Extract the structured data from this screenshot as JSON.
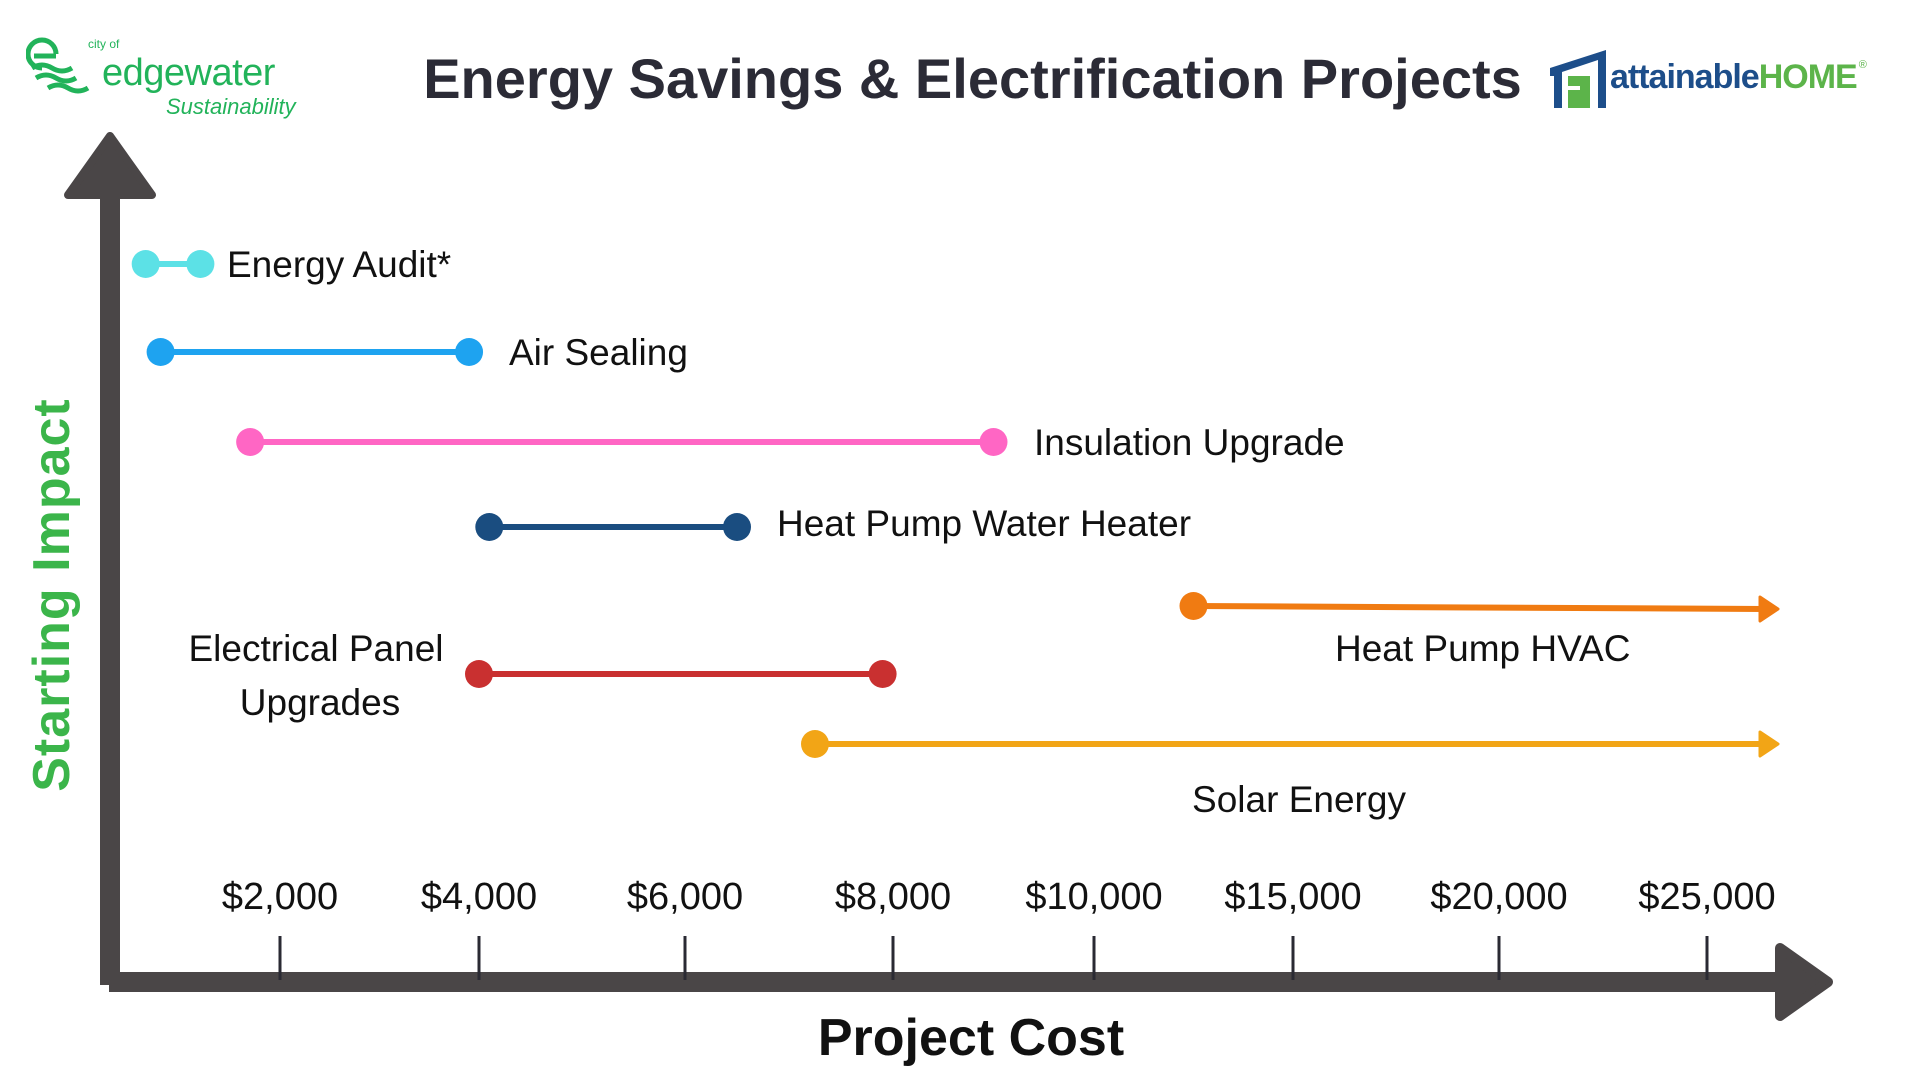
{
  "title": "Energy Savings & Electrification Projects",
  "logos": {
    "left": {
      "city_of": "city of",
      "name": "edgewater",
      "subtitle": "Sustainability",
      "color": "#22b35a"
    },
    "right": {
      "name_part1": "attainable",
      "name_part2": "HOME",
      "registered": "®",
      "colors": [
        "#1d4e8a",
        "#5cb44a"
      ]
    }
  },
  "chart_data": {
    "type": "range",
    "title": "Energy Savings & Electrification Projects",
    "xlabel": "Project Cost",
    "ylabel": "Starting Impact",
    "x_ticks": [
      2000,
      4000,
      6000,
      8000,
      10000,
      15000,
      20000,
      25000
    ],
    "x_tick_labels": [
      "$2,000",
      "$4,000",
      "$6,000",
      "$8,000",
      "$10,000",
      "$15,000",
      "$20,000",
      "$25,000"
    ],
    "x_scale": "non-uniform (evenly spaced ticks)",
    "grid": false,
    "axis_color": "#4a4647",
    "ylabel_color": "#3bb54a",
    "projects": [
      {
        "name": "Energy Audit*",
        "low": 650,
        "high": 1200,
        "open_ended": false,
        "color": "#5ce1e6"
      },
      {
        "name": "Air Sealing",
        "low": 800,
        "high": 3900,
        "open_ended": false,
        "color": "#1ea3f0"
      },
      {
        "name": "Insulation Upgrade",
        "low": 1700,
        "high": 9000,
        "open_ended": false,
        "color": "#ff66c4"
      },
      {
        "name": "Heat Pump Water Heater",
        "low": 4100,
        "high": 6500,
        "open_ended": false,
        "color": "#1a4d80"
      },
      {
        "name": "Heat Pump HVAC",
        "low": 12500,
        "high": null,
        "open_ended": true,
        "color": "#f07b12"
      },
      {
        "name": "Electrical Panel Upgrades",
        "name_lines": [
          "Electrical Panel",
          "Upgrades"
        ],
        "low": 4000,
        "high": 7900,
        "open_ended": false,
        "color": "#c93030"
      },
      {
        "name": "Solar Energy",
        "low": 7250,
        "high": null,
        "open_ended": true,
        "color": "#f2a516"
      }
    ]
  }
}
